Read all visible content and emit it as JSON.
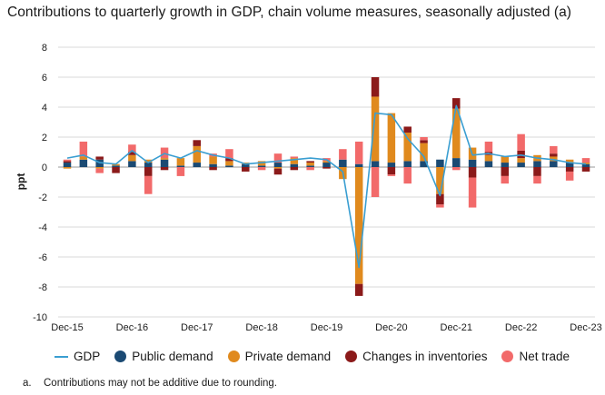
{
  "title": "Contributions to quarterly growth in GDP, chain volume measures, seasonally adjusted (a)",
  "legend": {
    "gdp": "GDP",
    "public": "Public demand",
    "private": "Private demand",
    "inventories": "Changes in inventories",
    "net_trade": "Net trade"
  },
  "footnote": {
    "marker": "a.",
    "text": "Contributions may not be additive due to rounding."
  },
  "colors": {
    "gdp": "#3a9ed1",
    "public": "#1b4a73",
    "private": "#e08a1e",
    "inventories": "#8b1a1a",
    "net_trade": "#f26a6a",
    "grid": "#d9d9d9"
  },
  "chart_data": {
    "type": "bar",
    "ylabel": "ppt",
    "ylim": [
      -10,
      8
    ],
    "yticks": [
      8,
      6,
      4,
      2,
      0,
      -2,
      -4,
      -6,
      -8,
      -10
    ],
    "grid": true,
    "legend_position": "bottom",
    "x_tick_labels": [
      "Dec-15",
      "Dec-16",
      "Dec-17",
      "Dec-18",
      "Dec-19",
      "Dec-20",
      "Dec-21",
      "Dec-22",
      "Dec-23"
    ],
    "categories": [
      "Dec-15",
      "Mar-16",
      "Jun-16",
      "Sep-16",
      "Dec-16",
      "Mar-17",
      "Jun-17",
      "Sep-17",
      "Dec-17",
      "Mar-18",
      "Jun-18",
      "Sep-18",
      "Dec-18",
      "Mar-19",
      "Jun-19",
      "Sep-19",
      "Dec-19",
      "Mar-20",
      "Jun-20",
      "Sep-20",
      "Dec-20",
      "Mar-21",
      "Jun-21",
      "Sep-21",
      "Dec-21",
      "Mar-22",
      "Jun-22",
      "Sep-22",
      "Dec-22",
      "Mar-23",
      "Jun-23",
      "Sep-23",
      "Dec-23"
    ],
    "series": [
      {
        "name": "Public demand",
        "kind": "stacked-bar",
        "values": [
          0.3,
          0.5,
          0.5,
          0.1,
          0.4,
          0.3,
          0.5,
          0.1,
          0.3,
          0.2,
          0.1,
          0.2,
          0.1,
          0.3,
          0.2,
          0.1,
          0.3,
          0.5,
          0.2,
          0.4,
          0.3,
          0.4,
          0.4,
          0.5,
          0.6,
          0.5,
          0.4,
          0.3,
          0.3,
          0.4,
          0.4,
          0.3,
          0.2
        ]
      },
      {
        "name": "Private demand",
        "kind": "stacked-bar",
        "values": [
          -0.1,
          0.2,
          -0.1,
          0.1,
          0.4,
          0.2,
          0.1,
          0.5,
          1.1,
          0.5,
          0.3,
          0.1,
          0.3,
          -0.1,
          0.4,
          0.2,
          0.1,
          -0.8,
          -7.8,
          4.3,
          3.3,
          1.9,
          1.2,
          -1.8,
          3.3,
          0.8,
          0.4,
          0.4,
          0.3,
          0.4,
          0.3,
          0.2,
          0.1
        ]
      },
      {
        "name": "Changes in inventories",
        "kind": "stacked-bar",
        "values": [
          0.1,
          0.0,
          0.2,
          -0.4,
          0.2,
          -0.6,
          -0.2,
          0.0,
          0.4,
          -0.2,
          0.2,
          -0.3,
          0.0,
          -0.4,
          -0.2,
          0.1,
          -0.1,
          0.0,
          -0.8,
          1.3,
          -0.5,
          0.4,
          0.2,
          -0.7,
          0.7,
          -0.7,
          0.2,
          -0.6,
          0.5,
          -0.6,
          0.2,
          -0.3,
          -0.3
        ]
      },
      {
        "name": "Net trade",
        "kind": "stacked-bar",
        "values": [
          0.1,
          1.0,
          -0.3,
          0.0,
          0.5,
          -1.2,
          0.7,
          -0.6,
          0.0,
          0.2,
          0.6,
          0.0,
          -0.2,
          0.6,
          0.1,
          -0.2,
          0.2,
          0.7,
          1.5,
          -2.0,
          -0.1,
          -1.1,
          0.2,
          -0.2,
          -0.2,
          -2.0,
          0.7,
          -0.5,
          1.1,
          -0.5,
          0.5,
          -0.6,
          0.3
        ]
      },
      {
        "name": "GDP",
        "kind": "line",
        "values": [
          0.6,
          0.8,
          0.3,
          0.2,
          1.1,
          0.3,
          0.9,
          0.6,
          1.1,
          0.8,
          0.6,
          0.2,
          0.3,
          0.4,
          0.5,
          0.6,
          0.5,
          -0.3,
          -6.7,
          3.6,
          3.5,
          1.9,
          0.7,
          -1.9,
          4.1,
          0.8,
          0.9,
          0.7,
          0.8,
          0.6,
          0.5,
          0.3,
          0.2
        ]
      }
    ]
  }
}
